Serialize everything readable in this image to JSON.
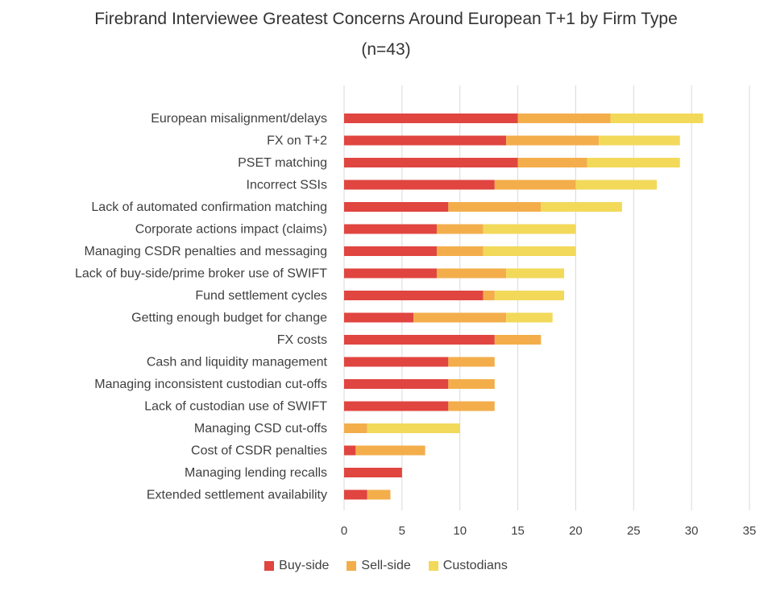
{
  "chart_data": {
    "type": "bar",
    "orientation": "horizontal",
    "stacked": true,
    "title": "Firebrand Interviewee Greatest Concerns Around European T+1 by Firm Type",
    "subtitle": "(n=43)",
    "categories": [
      "European misalignment/delays",
      "FX on T+2",
      "PSET matching",
      "Incorrect SSIs",
      "Lack of automated confirmation matching",
      "Corporate actions impact (claims)",
      "Managing CSDR penalties and messaging",
      "Lack of buy-side/prime broker use of SWIFT",
      "Fund settlement cycles",
      "Getting enough budget for change",
      "FX costs",
      "Cash and liquidity management",
      "Managing inconsistent custodian cut-offs",
      "Lack of custodian use of SWIFT",
      "Managing CSD cut-offs",
      "Cost of CSDR penalties",
      "Managing lending recalls",
      "Extended settlement availability"
    ],
    "series": [
      {
        "name": "Buy-side",
        "color": "#e04540",
        "values": [
          15,
          14,
          15,
          13,
          9,
          8,
          8,
          8,
          12,
          6,
          13,
          9,
          9,
          9,
          0,
          1,
          5,
          2
        ]
      },
      {
        "name": "Sell-side",
        "color": "#f3ae4b",
        "values": [
          8,
          8,
          6,
          7,
          8,
          4,
          4,
          6,
          1,
          8,
          4,
          4,
          4,
          4,
          2,
          6,
          0,
          2
        ]
      },
      {
        "name": "Custodians",
        "color": "#f2d95a",
        "values": [
          8,
          7,
          8,
          7,
          7,
          8,
          8,
          5,
          6,
          4,
          0,
          0,
          0,
          0,
          8,
          0,
          0,
          0
        ]
      }
    ],
    "xlim": [
      0,
      35
    ],
    "xticks": [
      "0",
      "5",
      "10",
      "15",
      "20",
      "25",
      "30",
      "35"
    ],
    "grid": true,
    "legend_position": "bottom"
  }
}
